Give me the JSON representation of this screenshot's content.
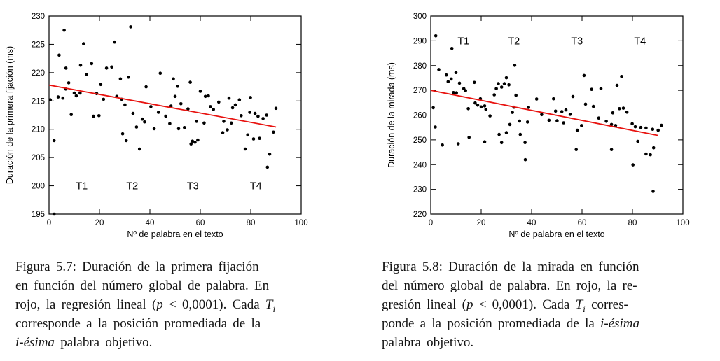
{
  "page_title": "Figuras 5.7 y 5.8 - scatter plots de duración de fijación y mirada",
  "accent_colors": {
    "regression_red": "#e8120f",
    "point_black": "#000000"
  },
  "chart_data": [
    {
      "type": "scatter",
      "title": "",
      "xlabel": "Nº de palabra en el texto",
      "ylabel": "Duración de la primera fijación (ms)",
      "xlim": [
        0,
        100
      ],
      "ylim": [
        195,
        230
      ],
      "xticks": [
        0,
        20,
        40,
        60,
        80,
        100
      ],
      "yticks": [
        195,
        200,
        205,
        210,
        215,
        220,
        225,
        230
      ],
      "grid": false,
      "legend": null,
      "point_color": "#000000",
      "annotations": [
        {
          "text": "T1",
          "x": 13,
          "y": 200
        },
        {
          "text": "T2",
          "x": 33,
          "y": 200
        },
        {
          "text": "T3",
          "x": 57,
          "y": 200
        },
        {
          "text": "T4",
          "x": 82,
          "y": 200
        }
      ],
      "regression_line": {
        "color": "#e8120f",
        "x": [
          0,
          90
        ],
        "y": [
          217.8,
          210.4
        ]
      },
      "points": [
        [
          0.5,
          215.2
        ],
        [
          2,
          195
        ],
        [
          2,
          208
        ],
        [
          3.6,
          215.7
        ],
        [
          4,
          223.1
        ],
        [
          5.5,
          215.5
        ],
        [
          6,
          227.5
        ],
        [
          6.6,
          217.1
        ],
        [
          6.7,
          220.8
        ],
        [
          7.8,
          218.2
        ],
        [
          8.8,
          212.6
        ],
        [
          10,
          216.4
        ],
        [
          10.8,
          215.9
        ],
        [
          12.3,
          216.4
        ],
        [
          12.5,
          221.3
        ],
        [
          13.7,
          225.1
        ],
        [
          14.9,
          219.7
        ],
        [
          16.9,
          221.6
        ],
        [
          17.6,
          212.3
        ],
        [
          18.9,
          216.3
        ],
        [
          19.8,
          212.4
        ],
        [
          20.5,
          217.9
        ],
        [
          21.6,
          215.3
        ],
        [
          22.8,
          220.8
        ],
        [
          24.9,
          221
        ],
        [
          26,
          225.4
        ],
        [
          26.9,
          215.8
        ],
        [
          28.3,
          218.9
        ],
        [
          28.8,
          215.3
        ],
        [
          29.2,
          209.2
        ],
        [
          30.1,
          214.3
        ],
        [
          30.6,
          208
        ],
        [
          31.5,
          219.2
        ],
        [
          32.4,
          228.1
        ],
        [
          33.3,
          212.8
        ],
        [
          34.7,
          210.4
        ],
        [
          35.9,
          206.5
        ],
        [
          37,
          211.8
        ],
        [
          37.9,
          211.3
        ],
        [
          38.5,
          217.5
        ],
        [
          40.4,
          214
        ],
        [
          41.7,
          210.1
        ],
        [
          43.4,
          213
        ],
        [
          44.1,
          219.9
        ],
        [
          46.3,
          212.3
        ],
        [
          47.9,
          211
        ],
        [
          48.4,
          214.1
        ],
        [
          49.3,
          218.9
        ],
        [
          50,
          215.8
        ],
        [
          51,
          217.6
        ],
        [
          51.4,
          210.1
        ],
        [
          52.3,
          214.5
        ],
        [
          53.7,
          210.3
        ],
        [
          55.1,
          213.6
        ],
        [
          56,
          218.3
        ],
        [
          56.3,
          207.4
        ],
        [
          56.9,
          207.9
        ],
        [
          57.9,
          207.7
        ],
        [
          58.5,
          211.4
        ],
        [
          59,
          208.1
        ],
        [
          60,
          216.7
        ],
        [
          61.5,
          211.1
        ],
        [
          62,
          215.8
        ],
        [
          63.2,
          215.9
        ],
        [
          64,
          214
        ],
        [
          65.2,
          213.5
        ],
        [
          67.3,
          214.8
        ],
        [
          68.9,
          209.4
        ],
        [
          69.3,
          211.4
        ],
        [
          70.7,
          209.9
        ],
        [
          71.4,
          215.5
        ],
        [
          72.3,
          211.1
        ],
        [
          72.8,
          213.8
        ],
        [
          73.9,
          214.3
        ],
        [
          75.5,
          215.2
        ],
        [
          76.2,
          212.4
        ],
        [
          77.8,
          206.5
        ],
        [
          78.8,
          209
        ],
        [
          79.6,
          213
        ],
        [
          79.9,
          215.6
        ],
        [
          81.1,
          208.3
        ],
        [
          81.7,
          212.8
        ],
        [
          82.9,
          212.3
        ],
        [
          83.5,
          208.4
        ],
        [
          84.9,
          211.9
        ],
        [
          86.3,
          212.5
        ],
        [
          86.6,
          203.3
        ],
        [
          87.5,
          205.6
        ],
        [
          89,
          209.5
        ],
        [
          90,
          213.7
        ]
      ]
    },
    {
      "type": "scatter",
      "title": "",
      "xlabel": "Nº de palabra en el texto",
      "ylabel": "Duración de la mirada (ms)",
      "xlim": [
        0,
        100
      ],
      "ylim": [
        220,
        300
      ],
      "xticks": [
        0,
        20,
        40,
        60,
        80,
        100
      ],
      "yticks": [
        220,
        230,
        240,
        250,
        260,
        270,
        280,
        290,
        300
      ],
      "grid": false,
      "legend": null,
      "point_color": "#000000",
      "annotations": [
        {
          "text": "T1",
          "x": 13,
          "y": 290
        },
        {
          "text": "T2",
          "x": 33,
          "y": 290
        },
        {
          "text": "T3",
          "x": 58,
          "y": 290
        },
        {
          "text": "T4",
          "x": 83,
          "y": 290
        }
      ],
      "regression_line": {
        "color": "#e8120f",
        "x": [
          0,
          90
        ],
        "y": [
          270,
          251.8
        ]
      },
      "points": [
        [
          1,
          263
        ],
        [
          1.8,
          255.2
        ],
        [
          2,
          292
        ],
        [
          3.2,
          278.4
        ],
        [
          4.6,
          247.9
        ],
        [
          6.2,
          276.2
        ],
        [
          6.9,
          273.5
        ],
        [
          8.1,
          274.6
        ],
        [
          8.4,
          286.9
        ],
        [
          9,
          269.1
        ],
        [
          10,
          277.2
        ],
        [
          10.2,
          269
        ],
        [
          10.9,
          248.4
        ],
        [
          11.4,
          272.9
        ],
        [
          13.1,
          270.7
        ],
        [
          13.8,
          269.9
        ],
        [
          14.9,
          262.6
        ],
        [
          15.2,
          251
        ],
        [
          17.3,
          273.2
        ],
        [
          17.6,
          264.9
        ],
        [
          18.6,
          264
        ],
        [
          19.7,
          266.6
        ],
        [
          20,
          263.3
        ],
        [
          21.4,
          263.7
        ],
        [
          21.4,
          249.2
        ],
        [
          21.9,
          262.3
        ],
        [
          23.5,
          259.7
        ],
        [
          25.2,
          268.2
        ],
        [
          26,
          270.7
        ],
        [
          26.8,
          272.7
        ],
        [
          27.1,
          252.2
        ],
        [
          28.1,
          271.3
        ],
        [
          28.1,
          248.9
        ],
        [
          29.2,
          272.7
        ],
        [
          30,
          275.1
        ],
        [
          30,
          252.9
        ],
        [
          31,
          272.2
        ],
        [
          31.4,
          256.2
        ],
        [
          32.4,
          261.1
        ],
        [
          33,
          263.2
        ],
        [
          33.3,
          280.1
        ],
        [
          33.8,
          268
        ],
        [
          35.2,
          257.6
        ],
        [
          35.5,
          252.2
        ],
        [
          37.4,
          248.9
        ],
        [
          37.5,
          242
        ],
        [
          38.4,
          257.2
        ],
        [
          38.8,
          263.1
        ],
        [
          42,
          266.5
        ],
        [
          44,
          260.2
        ],
        [
          46.9,
          257.9
        ],
        [
          48.7,
          266.6
        ],
        [
          49.5,
          261.6
        ],
        [
          50.1,
          257.7
        ],
        [
          52,
          261.4
        ],
        [
          52.7,
          256.9
        ],
        [
          53.6,
          262.1
        ],
        [
          55.3,
          260.3
        ],
        [
          56.4,
          267.5
        ],
        [
          57.7,
          246.1
        ],
        [
          58.1,
          253.9
        ],
        [
          59.8,
          255.8
        ],
        [
          60.8,
          276
        ],
        [
          61.4,
          264.4
        ],
        [
          63.8,
          270.4
        ],
        [
          64.5,
          263.5
        ],
        [
          66.6,
          258.8
        ],
        [
          67.5,
          270.7
        ],
        [
          69.6,
          257.5
        ],
        [
          71.7,
          256.2
        ],
        [
          71.7,
          246.1
        ],
        [
          72.2,
          260.9
        ],
        [
          73.3,
          255.8
        ],
        [
          73.9,
          272
        ],
        [
          74.8,
          262.6
        ],
        [
          75.7,
          275.6
        ],
        [
          76.4,
          262.8
        ],
        [
          77.8,
          261.2
        ],
        [
          79.9,
          256.5
        ],
        [
          80.2,
          239.9
        ],
        [
          81.1,
          255.3
        ],
        [
          82.1,
          249.4
        ],
        [
          83.3,
          255
        ],
        [
          85.4,
          254.8
        ],
        [
          85.4,
          244.3
        ],
        [
          87.1,
          244
        ],
        [
          88,
          254.3
        ],
        [
          88.2,
          229.2
        ],
        [
          88.4,
          246.8
        ],
        [
          90.2,
          253.9
        ],
        [
          91.5,
          255.9
        ]
      ]
    }
  ],
  "captions": [
    {
      "lines": [
        [
          {
            "t": "Figura 5.7: Duración de la primera fijación"
          }
        ],
        [
          {
            "t": "en función del número global de palabra. En"
          }
        ],
        [
          {
            "t": "rojo, la regresión lineal ("
          },
          {
            "t": "p",
            "s": "i"
          },
          {
            "t": " < 0,0001). Cada "
          },
          {
            "t": "T",
            "s": "i"
          },
          {
            "t": "i",
            "s": "subi"
          }
        ],
        [
          {
            "t": "corresponde a la posición promediada de la"
          }
        ],
        [
          {
            "t": "i-ésima",
            "s": "i"
          },
          {
            "t": " palabra objetivo."
          }
        ]
      ]
    },
    {
      "lines": [
        [
          {
            "t": "Figura 5.8: Duración de la mirada en función"
          }
        ],
        [
          {
            "t": "del número global de palabra. En rojo, la re-"
          }
        ],
        [
          {
            "t": "gresión lineal ("
          },
          {
            "t": "p",
            "s": "i"
          },
          {
            "t": " < 0,0001). Cada "
          },
          {
            "t": "T",
            "s": "i"
          },
          {
            "t": "i",
            "s": "subi"
          },
          {
            "t": " corres-"
          }
        ],
        [
          {
            "t": "ponde a la posición promediada de la "
          },
          {
            "t": "i-ésima",
            "s": "i"
          }
        ],
        [
          {
            "t": "palabra objetivo."
          }
        ]
      ]
    }
  ]
}
